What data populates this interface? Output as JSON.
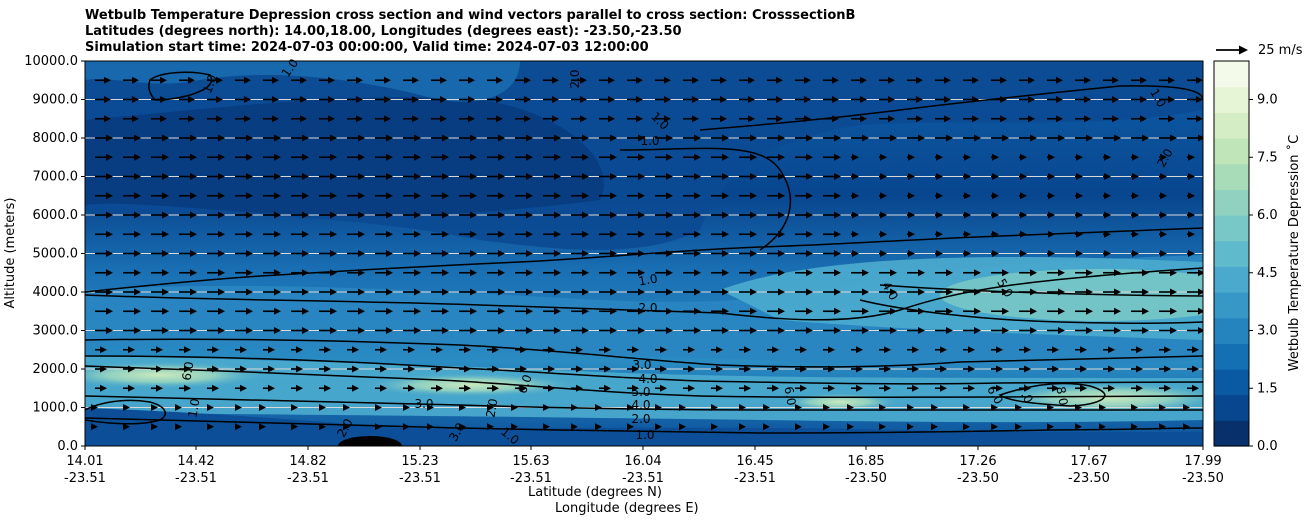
{
  "chart_data": {
    "type": "heatmap",
    "title_lines": [
      "Wetbulb Temperature Depression cross section and wind vectors parallel to cross section: CrosssectionB",
      "Latitudes (degrees north): 14.00,18.00, Longitudes (degrees east): -23.50,-23.50",
      "Simulation start time: 2024-07-03 00:00:00, Valid time: 2024-07-03 12:00:00"
    ],
    "ylabel": "Altitude (meters)",
    "xlabel_lat": "Latitude (degrees N)",
    "xlabel_lon": "Longitude (degrees E)",
    "ylim": [
      0,
      10000
    ],
    "y_ticks": [
      "0.0",
      "1000.0",
      "2000.0",
      "3000.0",
      "4000.0",
      "5000.0",
      "6000.0",
      "7000.0",
      "8000.0",
      "9000.0",
      "10000.0"
    ],
    "x_ticks": [
      {
        "lat": "14.01",
        "lon": "-23.51"
      },
      {
        "lat": "14.42",
        "lon": "-23.51"
      },
      {
        "lat": "14.82",
        "lon": "-23.51"
      },
      {
        "lat": "15.23",
        "lon": "-23.51"
      },
      {
        "lat": "15.63",
        "lon": "-23.51"
      },
      {
        "lat": "16.04",
        "lon": "-23.51"
      },
      {
        "lat": "16.45",
        "lon": "-23.51"
      },
      {
        "lat": "16.85",
        "lon": "-23.50"
      },
      {
        "lat": "17.26",
        "lon": "-23.50"
      },
      {
        "lat": "17.67",
        "lon": "-23.50"
      },
      {
        "lat": "17.99",
        "lon": "-23.50"
      }
    ],
    "colorbar": {
      "label": "Wetbulb Temperature Depression ˚C",
      "range": [
        0,
        10
      ],
      "ticks": [
        "0.0",
        "1.5",
        "3.0",
        "4.5",
        "6.0",
        "7.5",
        "9.0"
      ],
      "colors": [
        "#08306b",
        "#08468f",
        "#0a5aa3",
        "#1470b2",
        "#2584be",
        "#3797c6",
        "#4aa9cc",
        "#5fbacb",
        "#77c8c6",
        "#90d2bf",
        "#a8dcb8",
        "#bfe5b8",
        "#d4edc4",
        "#e6f5d6",
        "#f3faea"
      ]
    },
    "contour_labels": [
      "1.0",
      "2.0",
      "3.0",
      "4.0",
      "5.0",
      "6.0",
      "7.0",
      "8.0"
    ],
    "wind_reference": {
      "label": "25 m/s",
      "speed_ms": 25
    },
    "grid": true
  }
}
